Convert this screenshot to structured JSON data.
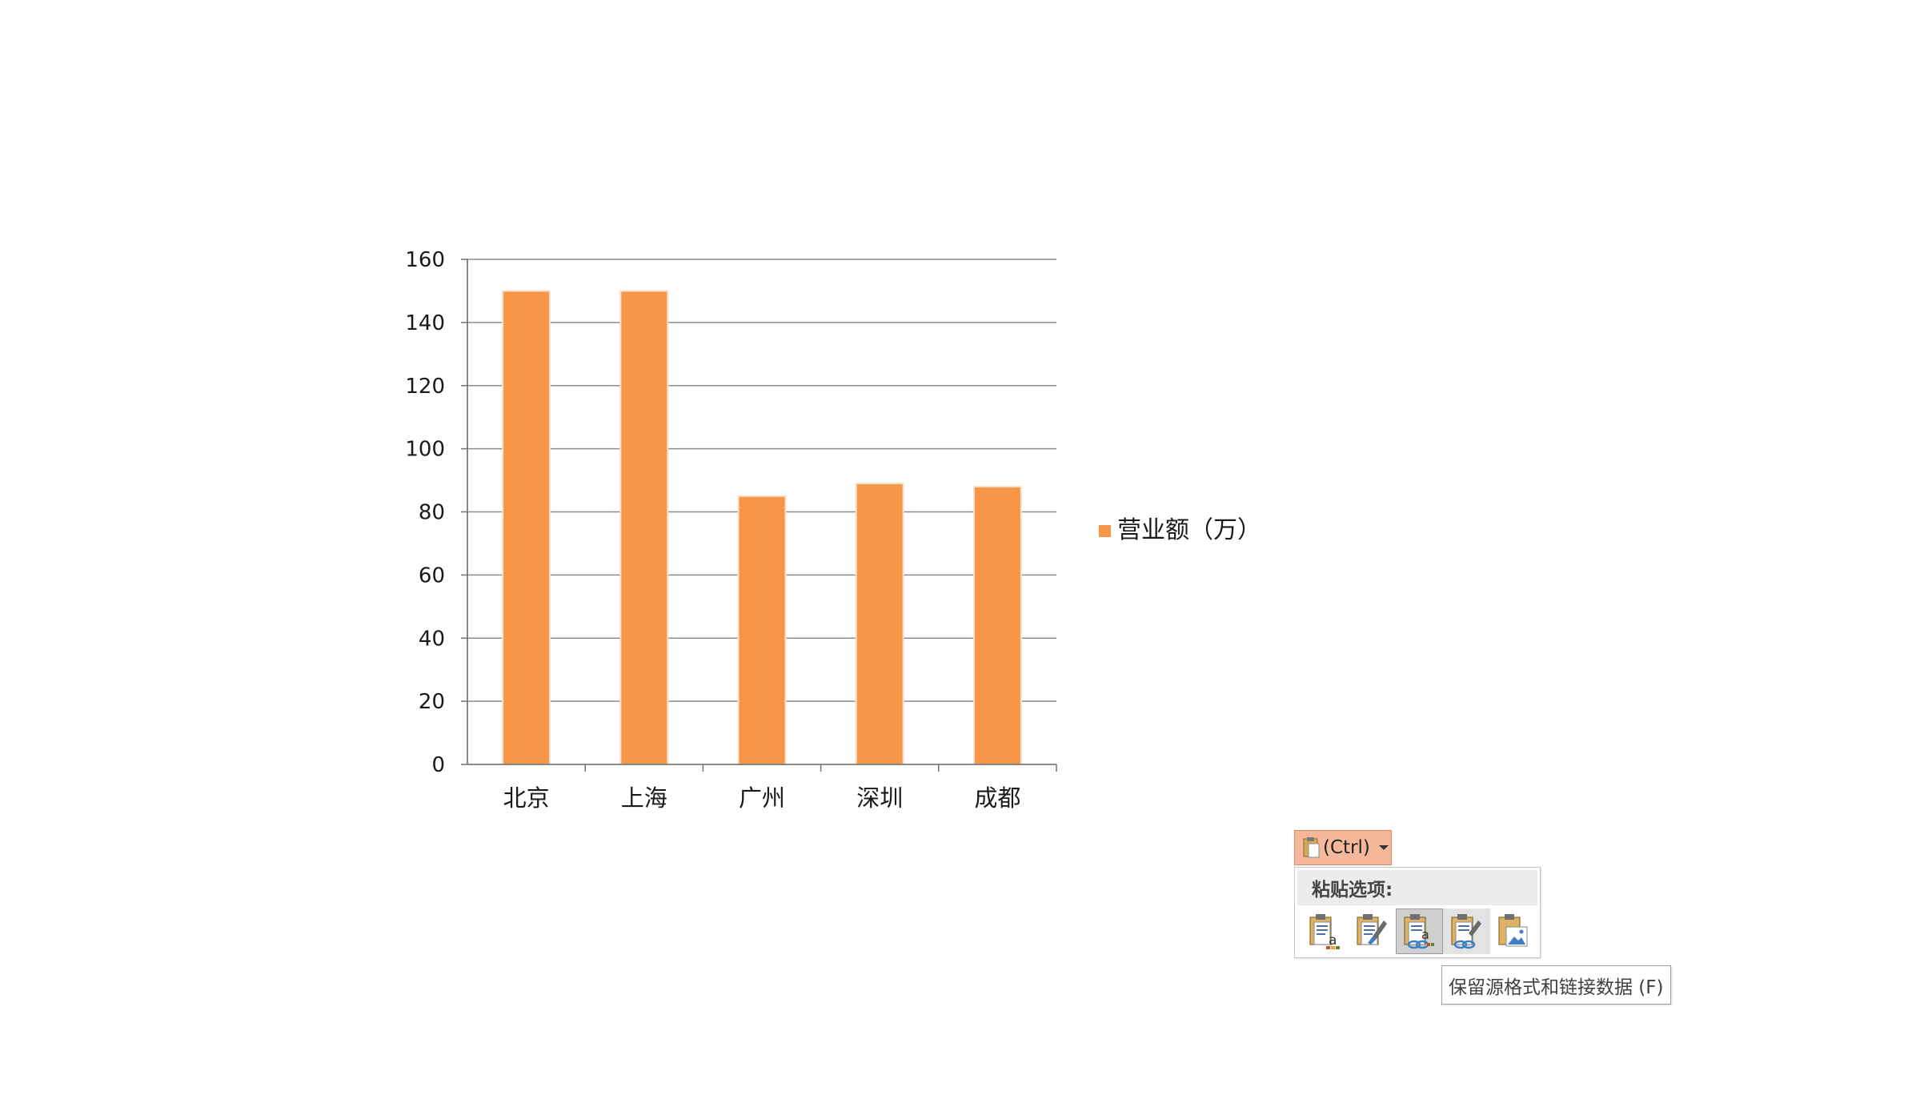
{
  "chart_data": {
    "type": "bar",
    "categories": [
      "北京",
      "上海",
      "广州",
      "深圳",
      "成都"
    ],
    "series": [
      {
        "name": "营业额（万）",
        "values": [
          150,
          150,
          85,
          89,
          88
        ]
      }
    ],
    "title": "",
    "xlabel": "",
    "ylabel": "",
    "ylim": [
      0,
      160
    ],
    "yticks": [
      "0",
      "20",
      "40",
      "60",
      "80",
      "100",
      "120",
      "140",
      "160"
    ],
    "grid": true,
    "legend_position": "right",
    "bar_color": "#f79646"
  },
  "paste_options": {
    "ctrl_label": "(Ctrl)",
    "panel_title": "粘贴选项:",
    "icons": [
      {
        "name": "keep-source-formatting-embed-icon",
        "state": "normal"
      },
      {
        "name": "use-destination-theme-embed-icon",
        "state": "normal"
      },
      {
        "name": "keep-source-formatting-link-icon",
        "state": "selected"
      },
      {
        "name": "use-destination-theme-link-icon",
        "state": "hovered"
      },
      {
        "name": "paste-as-picture-icon",
        "state": "normal"
      }
    ],
    "tooltip": "保留源格式和链接数据 (F)"
  },
  "colors": {
    "bar": "#f79646",
    "grid": "#8c8c8c",
    "ctrl_bg": "#f6b89a"
  }
}
